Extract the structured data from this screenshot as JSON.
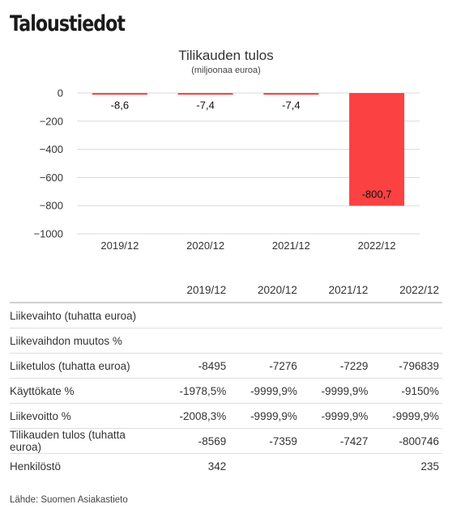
{
  "page": {
    "title": "Taloustiedot"
  },
  "chart_data": {
    "type": "bar",
    "title": "Tilikauden tulos",
    "subtitle": "(miljoonaa euroa)",
    "categories": [
      "2019/12",
      "2020/12",
      "2021/12",
      "2022/12"
    ],
    "values": [
      -8.6,
      -7.4,
      -7.4,
      -800.7
    ],
    "value_labels": [
      "-8,6",
      "-7,4",
      "-7,4",
      "-800,7"
    ],
    "ylim": [
      -1000,
      0
    ],
    "yticks": [
      0,
      -200,
      -400,
      -600,
      -800,
      -1000
    ],
    "ytick_labels": [
      "0",
      "−200",
      "−400",
      "−600",
      "−800",
      "−1000"
    ],
    "grid": true,
    "bar_color": "#fb4141"
  },
  "table": {
    "columns": [
      "",
      "2019/12",
      "2020/12",
      "2021/12",
      "2022/12"
    ],
    "rows": [
      {
        "label": "Liikevaihto (tuhatta euroa)",
        "values": [
          "",
          "",
          "",
          ""
        ]
      },
      {
        "label": "Liikevaihdon muutos %",
        "values": [
          "",
          "",
          "",
          ""
        ]
      },
      {
        "label": "Liiketulos (tuhatta euroa)",
        "values": [
          "-8495",
          "-7276",
          "-7229",
          "-796839"
        ]
      },
      {
        "label": "Käyttökate %",
        "values": [
          "-1978,5%",
          "-9999,9%",
          "-9999,9%",
          "-9150%"
        ]
      },
      {
        "label": "Liikevoitto %",
        "values": [
          "-2008,3%",
          "-9999,9%",
          "-9999,9%",
          "-9999,9%"
        ]
      },
      {
        "label": "Tilikauden tulos (tuhatta euroa)",
        "values": [
          "-8569",
          "-7359",
          "-7427",
          "-800746"
        ]
      },
      {
        "label": "Henkilöstö",
        "values": [
          "342",
          "",
          "",
          "235"
        ]
      }
    ]
  },
  "source": "Lähde: Suomen Asiakastieto"
}
